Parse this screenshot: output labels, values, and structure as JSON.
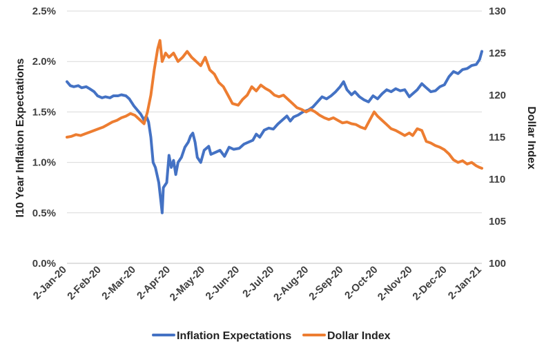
{
  "chart_data": {
    "type": "line",
    "x_tick_labels": [
      "2-Jan-20",
      "2-Feb-20",
      "2-Mar-20",
      "2-Apr-20",
      "2-May-20",
      "2-Jun-20",
      "2-Jul-20",
      "2-Aug-20",
      "2-Sep-20",
      "2-Oct-20",
      "2-Nov-20",
      "2-Dec-20",
      "2-Jan-21"
    ],
    "x_start": "2020-01-02",
    "x_end": "2021-01-02",
    "ylabel_left": "I10 Year Inflation Expectations",
    "ylabel_right": "Dollar Index",
    "ylim_left": [
      0,
      2.5
    ],
    "ylim_right": [
      100,
      130
    ],
    "yticks_left": [
      "0.0%",
      "0.5%",
      "1.0%",
      "1.5%",
      "2.0%",
      "2.5%"
    ],
    "yticks_left_values": [
      0,
      0.5,
      1.0,
      1.5,
      2.0,
      2.5
    ],
    "yticks_right": [
      "100",
      "105",
      "110",
      "115",
      "120",
      "125",
      "130"
    ],
    "yticks_right_values": [
      100,
      105,
      110,
      115,
      120,
      125,
      130
    ],
    "grid": true,
    "legend_position": "bottom",
    "series": [
      {
        "name": "Inflation Expectations",
        "axis": "left",
        "color": "#4472c4",
        "points": [
          [
            "2020-01-02",
            1.8
          ],
          [
            "2020-01-05",
            1.76
          ],
          [
            "2020-01-08",
            1.75
          ],
          [
            "2020-01-12",
            1.76
          ],
          [
            "2020-01-15",
            1.74
          ],
          [
            "2020-01-19",
            1.75
          ],
          [
            "2020-01-22",
            1.73
          ],
          [
            "2020-01-26",
            1.7
          ],
          [
            "2020-01-29",
            1.66
          ],
          [
            "2020-02-02",
            1.64
          ],
          [
            "2020-02-05",
            1.65
          ],
          [
            "2020-02-09",
            1.64
          ],
          [
            "2020-02-12",
            1.66
          ],
          [
            "2020-02-16",
            1.66
          ],
          [
            "2020-02-19",
            1.67
          ],
          [
            "2020-02-23",
            1.66
          ],
          [
            "2020-02-26",
            1.63
          ],
          [
            "2020-03-01",
            1.56
          ],
          [
            "2020-03-04",
            1.52
          ],
          [
            "2020-03-07",
            1.48
          ],
          [
            "2020-03-10",
            1.42
          ],
          [
            "2020-03-12",
            1.46
          ],
          [
            "2020-03-14",
            1.4
          ],
          [
            "2020-03-16",
            1.25
          ],
          [
            "2020-03-18",
            1.0
          ],
          [
            "2020-03-20",
            0.95
          ],
          [
            "2020-03-23",
            0.8
          ],
          [
            "2020-03-25",
            0.6
          ],
          [
            "2020-03-26",
            0.5
          ],
          [
            "2020-03-27",
            0.75
          ],
          [
            "2020-03-30",
            0.8
          ],
          [
            "2020-04-01",
            1.07
          ],
          [
            "2020-04-03",
            0.95
          ],
          [
            "2020-04-05",
            1.02
          ],
          [
            "2020-04-07",
            0.88
          ],
          [
            "2020-04-09",
            1.0
          ],
          [
            "2020-04-12",
            1.05
          ],
          [
            "2020-04-15",
            1.15
          ],
          [
            "2020-04-18",
            1.2
          ],
          [
            "2020-04-20",
            1.26
          ],
          [
            "2020-04-22",
            1.29
          ],
          [
            "2020-04-24",
            1.2
          ],
          [
            "2020-04-26",
            1.05
          ],
          [
            "2020-04-29",
            1.0
          ],
          [
            "2020-05-02",
            1.12
          ],
          [
            "2020-05-06",
            1.16
          ],
          [
            "2020-05-08",
            1.08
          ],
          [
            "2020-05-12",
            1.1
          ],
          [
            "2020-05-16",
            1.12
          ],
          [
            "2020-05-20",
            1.06
          ],
          [
            "2020-05-24",
            1.15
          ],
          [
            "2020-05-28",
            1.13
          ],
          [
            "2020-06-02",
            1.14
          ],
          [
            "2020-06-06",
            1.18
          ],
          [
            "2020-06-10",
            1.2
          ],
          [
            "2020-06-14",
            1.22
          ],
          [
            "2020-06-17",
            1.28
          ],
          [
            "2020-06-20",
            1.25
          ],
          [
            "2020-06-24",
            1.32
          ],
          [
            "2020-06-28",
            1.34
          ],
          [
            "2020-07-02",
            1.33
          ],
          [
            "2020-07-06",
            1.38
          ],
          [
            "2020-07-10",
            1.42
          ],
          [
            "2020-07-14",
            1.46
          ],
          [
            "2020-07-17",
            1.41
          ],
          [
            "2020-07-20",
            1.45
          ],
          [
            "2020-07-24",
            1.47
          ],
          [
            "2020-07-28",
            1.5
          ],
          [
            "2020-08-02",
            1.52
          ],
          [
            "2020-08-06",
            1.55
          ],
          [
            "2020-08-10",
            1.6
          ],
          [
            "2020-08-14",
            1.65
          ],
          [
            "2020-08-18",
            1.63
          ],
          [
            "2020-08-22",
            1.66
          ],
          [
            "2020-08-26",
            1.7
          ],
          [
            "2020-08-30",
            1.75
          ],
          [
            "2020-09-02",
            1.8
          ],
          [
            "2020-09-05",
            1.72
          ],
          [
            "2020-09-09",
            1.67
          ],
          [
            "2020-09-12",
            1.7
          ],
          [
            "2020-09-16",
            1.65
          ],
          [
            "2020-09-20",
            1.62
          ],
          [
            "2020-09-24",
            1.6
          ],
          [
            "2020-09-28",
            1.66
          ],
          [
            "2020-10-02",
            1.63
          ],
          [
            "2020-10-06",
            1.68
          ],
          [
            "2020-10-10",
            1.72
          ],
          [
            "2020-10-14",
            1.7
          ],
          [
            "2020-10-18",
            1.73
          ],
          [
            "2020-10-22",
            1.71
          ],
          [
            "2020-10-26",
            1.72
          ],
          [
            "2020-10-30",
            1.65
          ],
          [
            "2020-11-02",
            1.68
          ],
          [
            "2020-11-06",
            1.72
          ],
          [
            "2020-11-10",
            1.78
          ],
          [
            "2020-11-14",
            1.74
          ],
          [
            "2020-11-18",
            1.7
          ],
          [
            "2020-11-22",
            1.71
          ],
          [
            "2020-11-26",
            1.75
          ],
          [
            "2020-11-30",
            1.77
          ],
          [
            "2020-12-04",
            1.85
          ],
          [
            "2020-12-08",
            1.9
          ],
          [
            "2020-12-12",
            1.88
          ],
          [
            "2020-12-16",
            1.92
          ],
          [
            "2020-12-20",
            1.93
          ],
          [
            "2020-12-24",
            1.96
          ],
          [
            "2020-12-28",
            1.97
          ],
          [
            "2020-12-31",
            2.02
          ],
          [
            "2021-01-02",
            2.1
          ]
        ]
      },
      {
        "name": "Dollar Index",
        "axis": "right",
        "color": "#ed7d31",
        "points": [
          [
            "2020-01-02",
            115.0
          ],
          [
            "2020-01-06",
            115.1
          ],
          [
            "2020-01-10",
            115.3
          ],
          [
            "2020-01-14",
            115.2
          ],
          [
            "2020-01-18",
            115.4
          ],
          [
            "2020-01-22",
            115.6
          ],
          [
            "2020-01-26",
            115.8
          ],
          [
            "2020-01-30",
            116.0
          ],
          [
            "2020-02-03",
            116.2
          ],
          [
            "2020-02-07",
            116.5
          ],
          [
            "2020-02-11",
            116.8
          ],
          [
            "2020-02-15",
            117.0
          ],
          [
            "2020-02-19",
            117.3
          ],
          [
            "2020-02-23",
            117.5
          ],
          [
            "2020-02-27",
            117.8
          ],
          [
            "2020-03-02",
            117.6
          ],
          [
            "2020-03-06",
            117.1
          ],
          [
            "2020-03-10",
            116.6
          ],
          [
            "2020-03-13",
            118.0
          ],
          [
            "2020-03-16",
            120.0
          ],
          [
            "2020-03-19",
            123.0
          ],
          [
            "2020-03-22",
            125.5
          ],
          [
            "2020-03-24",
            126.5
          ],
          [
            "2020-03-26",
            124.0
          ],
          [
            "2020-03-29",
            125.0
          ],
          [
            "2020-04-01",
            124.5
          ],
          [
            "2020-04-05",
            125.0
          ],
          [
            "2020-04-09",
            124.0
          ],
          [
            "2020-04-13",
            124.5
          ],
          [
            "2020-04-17",
            125.2
          ],
          [
            "2020-04-21",
            124.5
          ],
          [
            "2020-04-25",
            124.0
          ],
          [
            "2020-04-29",
            123.5
          ],
          [
            "2020-05-03",
            124.5
          ],
          [
            "2020-05-07",
            123.0
          ],
          [
            "2020-05-11",
            122.5
          ],
          [
            "2020-05-15",
            121.5
          ],
          [
            "2020-05-19",
            121.0
          ],
          [
            "2020-05-23",
            120.0
          ],
          [
            "2020-05-27",
            119.0
          ],
          [
            "2020-06-01",
            118.8
          ],
          [
            "2020-06-05",
            119.5
          ],
          [
            "2020-06-09",
            120.0
          ],
          [
            "2020-06-13",
            121.0
          ],
          [
            "2020-06-17",
            120.5
          ],
          [
            "2020-06-21",
            121.2
          ],
          [
            "2020-06-25",
            120.8
          ],
          [
            "2020-06-29",
            120.5
          ],
          [
            "2020-07-03",
            120.0
          ],
          [
            "2020-07-07",
            119.8
          ],
          [
            "2020-07-11",
            120.0
          ],
          [
            "2020-07-15",
            119.5
          ],
          [
            "2020-07-19",
            119.0
          ],
          [
            "2020-07-23",
            118.5
          ],
          [
            "2020-07-27",
            118.3
          ],
          [
            "2020-07-31",
            118.0
          ],
          [
            "2020-08-04",
            118.3
          ],
          [
            "2020-08-08",
            118.0
          ],
          [
            "2020-08-12",
            117.6
          ],
          [
            "2020-08-16",
            117.3
          ],
          [
            "2020-08-20",
            117.1
          ],
          [
            "2020-08-24",
            117.3
          ],
          [
            "2020-08-28",
            117.0
          ],
          [
            "2020-09-01",
            116.7
          ],
          [
            "2020-09-05",
            116.8
          ],
          [
            "2020-09-09",
            116.6
          ],
          [
            "2020-09-13",
            116.5
          ],
          [
            "2020-09-17",
            116.2
          ],
          [
            "2020-09-21",
            116.0
          ],
          [
            "2020-09-25",
            117.0
          ],
          [
            "2020-09-29",
            118.0
          ],
          [
            "2020-10-02",
            117.5
          ],
          [
            "2020-10-06",
            117.0
          ],
          [
            "2020-10-10",
            116.5
          ],
          [
            "2020-10-14",
            116.0
          ],
          [
            "2020-10-18",
            115.8
          ],
          [
            "2020-10-22",
            115.5
          ],
          [
            "2020-10-26",
            115.2
          ],
          [
            "2020-10-30",
            115.5
          ],
          [
            "2020-11-02",
            115.2
          ],
          [
            "2020-11-06",
            116.0
          ],
          [
            "2020-11-10",
            115.8
          ],
          [
            "2020-11-14",
            114.5
          ],
          [
            "2020-11-18",
            114.3
          ],
          [
            "2020-11-22",
            114.0
          ],
          [
            "2020-11-26",
            113.8
          ],
          [
            "2020-11-30",
            113.5
          ],
          [
            "2020-12-04",
            113.0
          ],
          [
            "2020-12-08",
            112.3
          ],
          [
            "2020-12-12",
            112.0
          ],
          [
            "2020-12-16",
            112.2
          ],
          [
            "2020-12-20",
            111.8
          ],
          [
            "2020-12-24",
            112.0
          ],
          [
            "2020-12-28",
            111.6
          ],
          [
            "2020-12-31",
            111.4
          ],
          [
            "2021-01-02",
            111.3
          ]
        ]
      }
    ]
  }
}
